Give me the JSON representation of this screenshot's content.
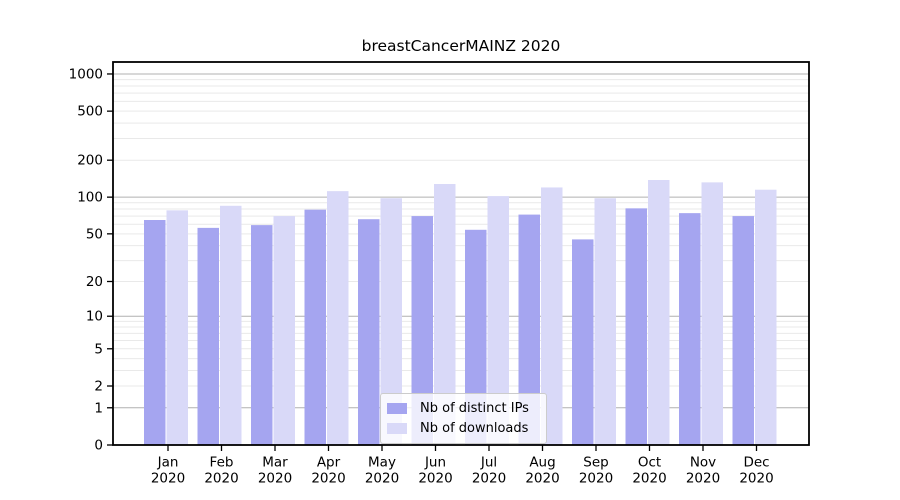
{
  "chart_data": {
    "type": "bar",
    "title": "breastCancerMAINZ 2020",
    "categories": [
      "Jan",
      "Feb",
      "Mar",
      "Apr",
      "May",
      "Jun",
      "Jul",
      "Aug",
      "Sep",
      "Oct",
      "Nov",
      "Dec"
    ],
    "category_year": "2020",
    "series": [
      {
        "name": "Nb of distinct IPs",
        "color": "#a5a5f0",
        "values": [
          65,
          56,
          59,
          79,
          66,
          70,
          54,
          72,
          45,
          81,
          74,
          70
        ]
      },
      {
        "name": "Nb of downloads",
        "color": "#d9d9f8",
        "values": [
          78,
          85,
          70,
          112,
          98,
          128,
          102,
          120,
          98,
          138,
          132,
          115
        ]
      }
    ],
    "y_scale": "log10(v+1)",
    "ylim": [
      0,
      1250
    ],
    "y_ticks": [
      1000,
      500,
      200,
      100,
      50,
      20,
      10,
      5,
      2,
      1,
      0
    ],
    "y_major_grid": [
      1,
      10,
      100,
      1000
    ],
    "y_minor_grid": [
      2,
      3,
      4,
      5,
      6,
      7,
      8,
      9,
      20,
      30,
      40,
      50,
      60,
      70,
      80,
      90,
      200,
      300,
      400,
      500,
      600,
      700,
      800,
      900
    ],
    "grid": true,
    "legend_position": "bottom-center",
    "colors": {
      "major_grid": "#b0b0b0",
      "minor_grid": "#e9e9e9",
      "spine": "#000000",
      "text": "#000000",
      "background": "#ffffff"
    }
  }
}
